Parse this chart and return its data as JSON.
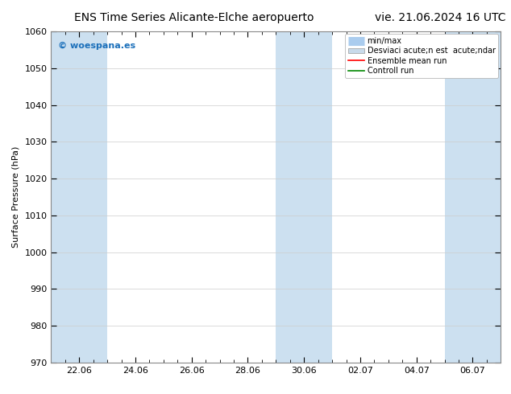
{
  "title_left": "ENS Time Series Alicante-Elche aeropuerto",
  "title_right": "vie. 21.06.2024 16 UTC",
  "ylabel": "Surface Pressure (hPa)",
  "ylim": [
    970,
    1060
  ],
  "yticks": [
    970,
    980,
    990,
    1000,
    1010,
    1020,
    1030,
    1040,
    1050,
    1060
  ],
  "xtick_labels": [
    "22.06",
    "24.06",
    "26.06",
    "28.06",
    "30.06",
    "02.07",
    "04.07",
    "06.07"
  ],
  "band_color": "#cce0f0",
  "band_alpha": 1.0,
  "watermark_text": "© woespana.es",
  "watermark_color": "#1a6fba",
  "legend_label_minmax": "min/max",
  "legend_label_std": "Desviaci acute;n est  acute;ndar",
  "legend_label_ens": "Ensemble mean run",
  "legend_label_ctrl": "Controll run",
  "color_minmax": "#aaccee",
  "color_std": "#c8daea",
  "color_ens": "#ff0000",
  "color_ctrl": "#008800",
  "bg_color": "#ffffff",
  "grid_color": "#cccccc",
  "title_fontsize": 10,
  "axis_fontsize": 8,
  "legend_fontsize": 7
}
